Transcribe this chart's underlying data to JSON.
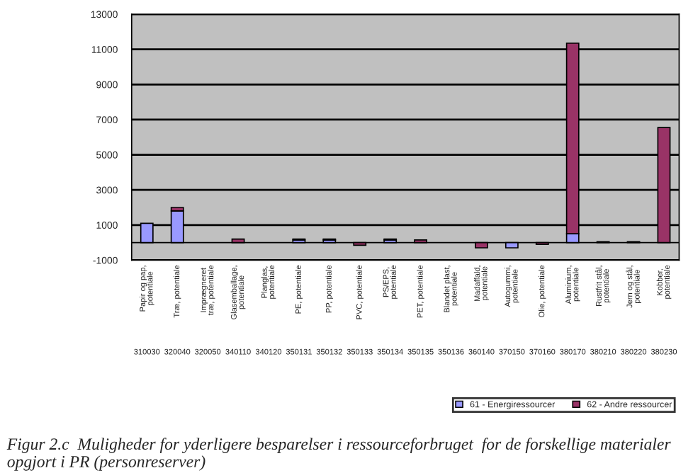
{
  "chart_data": {
    "type": "bar",
    "stacked": true,
    "title": "Figur 2.c  Muligheder for yderligere besparelser i ressourceforbruget  for de forskellige materialer opgjort i PR (personreserver)",
    "categories": [
      "Papir og pap,\npotentiale\n310030",
      "Træ, potentiale\n320040",
      "Imprægneret\ntræ, potentiale\n320050",
      "Glasemballage,\npotentiale\n340110",
      "Planglas,\npotentiale\n340120",
      "PE, potentiale\n350131",
      "PP, potentiale\n350132",
      "PVC, potentiale\n350133",
      "PS/EPS,\npotentiale\n350134",
      "PET, potentiale\n350135",
      "Blandet plast,\npotentiale\n350136",
      "Madaffald,\npotentiale\n360140",
      "Autogummi,\npotentiale\n370150",
      "Olie, potentiale\n370160",
      "Aluminium,\npotentiale\n380170",
      "Rustfrit stål,\npotentiale\n380210",
      "Jern og stål,\npotentiale\n380220",
      "Kobber,\npotentiale\n380230"
    ],
    "series": [
      {
        "name": "61 - Energiressourcer",
        "color": "#9999ff",
        "values": [
          1100,
          1800,
          null,
          null,
          null,
          150,
          150,
          null,
          150,
          null,
          null,
          null,
          -300,
          null,
          500,
          null,
          null,
          null
        ]
      },
      {
        "name": "62 - Andre ressourcer",
        "color": "#993366",
        "values": [
          null,
          200,
          null,
          200,
          null,
          50,
          50,
          -150,
          50,
          150,
          null,
          -300,
          null,
          -100,
          10850,
          50,
          50,
          6550
        ]
      }
    ],
    "ylim": [
      -1000,
      13000
    ],
    "yticks": [
      -1000,
      1000,
      3000,
      5000,
      7000,
      9000,
      11000,
      13000
    ],
    "grid": "y",
    "legend": "bottom right"
  }
}
